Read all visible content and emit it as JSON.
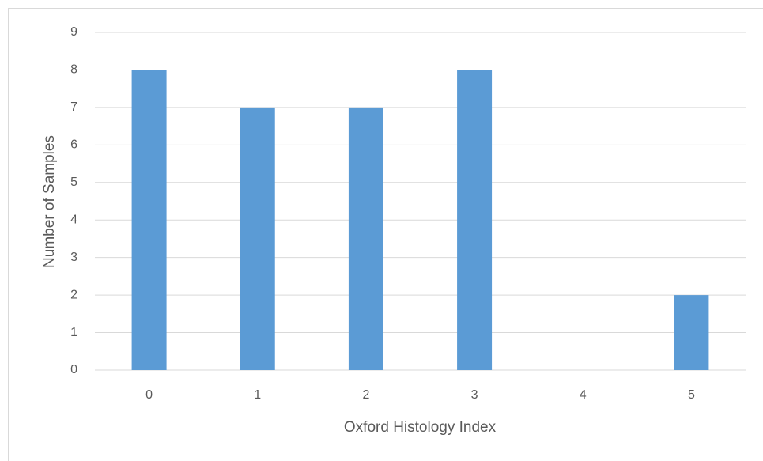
{
  "chart_data": {
    "type": "bar",
    "xlabel": "Oxford Histology Index",
    "ylabel": "Number of Samples",
    "categories": [
      "0",
      "1",
      "2",
      "3",
      "4",
      "5"
    ],
    "values": [
      8,
      7,
      7,
      8,
      0,
      2
    ],
    "color": "#5b9bd5",
    "ylim": [
      0,
      9
    ],
    "yticks": [
      0,
      1,
      2,
      3,
      4,
      5,
      6,
      7,
      8,
      9
    ],
    "grid": true
  }
}
